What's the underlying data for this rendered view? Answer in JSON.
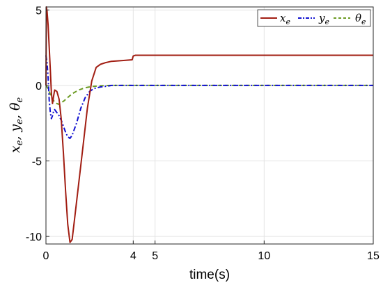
{
  "chart_data": {
    "type": "line",
    "xlabel": "time(s)",
    "ylabel": "x_e, y_e, θ_e",
    "xlim": [
      0,
      15
    ],
    "ylim": [
      -10.5,
      5.2
    ],
    "x_ticks": [
      0,
      4,
      5,
      10,
      15
    ],
    "x_tick_labels": [
      "0",
      "4",
      "5",
      "10",
      "15"
    ],
    "y_ticks": [
      5,
      0,
      -5,
      -10
    ],
    "y_tick_labels": [
      "5",
      "0",
      "-5",
      "-10"
    ],
    "grid": true,
    "legend_position": "top-right",
    "series": [
      {
        "name": "x_e",
        "legend_base": "x",
        "legend_sub": "e",
        "color": "#a11d12",
        "style": "solid",
        "x": [
          0,
          0.02,
          0.05,
          0.1,
          0.15,
          0.2,
          0.25,
          0.3,
          0.35,
          0.4,
          0.5,
          0.6,
          0.7,
          0.8,
          0.9,
          1.0,
          1.1,
          1.2,
          1.3,
          1.5,
          1.7,
          1.9,
          2.1,
          2.3,
          2.5,
          2.7,
          3.0,
          3.5,
          3.95,
          4.0,
          4.1,
          4.5,
          5,
          6,
          8,
          10,
          12,
          15
        ],
        "y": [
          0,
          5.2,
          4.9,
          4.0,
          2.5,
          1.0,
          -0.5,
          -1.2,
          -0.7,
          -0.3,
          -0.4,
          -0.9,
          -2.2,
          -4.5,
          -7.0,
          -9.2,
          -10.4,
          -10.2,
          -9.0,
          -6.5,
          -4.0,
          -1.5,
          0.3,
          1.2,
          1.4,
          1.5,
          1.6,
          1.65,
          1.7,
          1.95,
          2.0,
          2.0,
          2.0,
          2.0,
          2.0,
          2.0,
          2.0,
          2.0
        ]
      },
      {
        "name": "y_e",
        "legend_base": "y",
        "legend_sub": "e",
        "color": "#1010d0",
        "style": "dashdot",
        "x": [
          0,
          0.05,
          0.1,
          0.15,
          0.2,
          0.25,
          0.3,
          0.35,
          0.4,
          0.5,
          0.6,
          0.7,
          0.8,
          0.9,
          1.0,
          1.1,
          1.2,
          1.4,
          1.6,
          1.8,
          2.0,
          2.2,
          2.5,
          2.8,
          3.0,
          3.5,
          4.0,
          5,
          6,
          8,
          10,
          12,
          15
        ],
        "y": [
          2.0,
          1.5,
          0.5,
          -1.0,
          -1.8,
          -2.2,
          -2.0,
          -1.7,
          -1.6,
          -1.8,
          -2.0,
          -2.3,
          -2.7,
          -3.1,
          -3.4,
          -3.5,
          -3.3,
          -2.5,
          -1.5,
          -0.8,
          -0.4,
          -0.2,
          -0.1,
          -0.05,
          0,
          0,
          0,
          0,
          0,
          0,
          0,
          0,
          0
        ]
      },
      {
        "name": "θ_e",
        "legend_base": "θ",
        "legend_sub": "e",
        "color": "#6b9a22",
        "style": "dashed",
        "x": [
          0,
          0.1,
          0.2,
          0.3,
          0.4,
          0.5,
          0.6,
          0.8,
          1.0,
          1.2,
          1.5,
          1.8,
          2.1,
          2.5,
          3.0,
          3.5,
          4.0,
          5,
          6,
          8,
          10,
          12,
          15
        ],
        "y": [
          0,
          -0.2,
          -0.6,
          -0.9,
          -1.1,
          -1.2,
          -1.25,
          -1.05,
          -0.8,
          -0.55,
          -0.3,
          -0.15,
          -0.07,
          -0.02,
          0,
          0,
          0,
          0,
          0,
          0,
          0,
          0,
          0
        ]
      }
    ]
  }
}
